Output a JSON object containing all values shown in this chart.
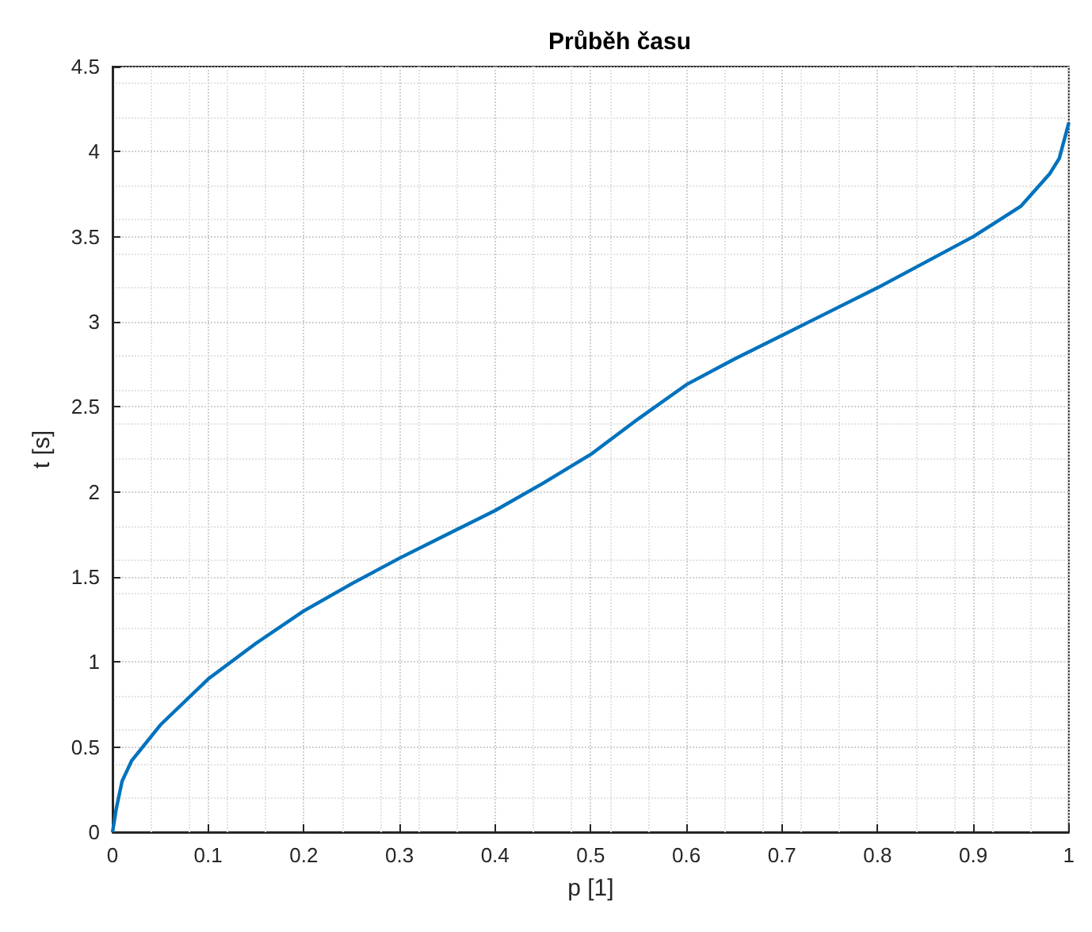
{
  "chart_data": {
    "type": "line",
    "title": "Průběh času",
    "xlabel": "p [1]",
    "ylabel": "t [s]",
    "x": [
      0,
      0.004,
      0.01,
      0.02,
      0.05,
      0.1,
      0.15,
      0.2,
      0.25,
      0.3,
      0.35,
      0.4,
      0.45,
      0.5,
      0.55,
      0.6,
      0.65,
      0.7,
      0.75,
      0.8,
      0.85,
      0.9,
      0.95,
      0.98,
      0.99,
      1
    ],
    "series": [
      {
        "color": "#0072bd",
        "values": [
          0,
          0.14,
          0.3,
          0.42,
          0.63,
          0.9,
          1.11,
          1.3,
          1.46,
          1.61,
          1.75,
          1.89,
          2.05,
          2.22,
          2.43,
          2.63,
          2.78,
          2.92,
          3.06,
          3.2,
          3.35,
          3.5,
          3.68,
          3.87,
          3.96,
          4.17
        ]
      }
    ],
    "xlim": [
      0,
      1
    ],
    "xticks": [
      0,
      0.1,
      0.2,
      0.3,
      0.4,
      0.5,
      0.6,
      0.7,
      0.8,
      0.9,
      1
    ],
    "ylim": [
      0,
      4.5
    ],
    "yticks": [
      0,
      0.5,
      1,
      1.5,
      2,
      2.5,
      3,
      3.5,
      4,
      4.5
    ],
    "grid": true,
    "marker": "none",
    "line_style": "solid"
  }
}
